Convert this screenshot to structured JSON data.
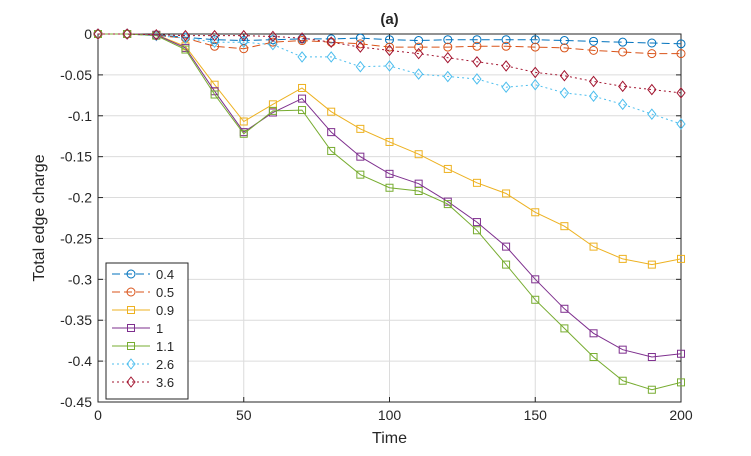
{
  "chart_data": {
    "type": "line",
    "title": "(a)",
    "xlabel": "Time",
    "ylabel": "Total edge charge",
    "xlim": [
      0,
      200
    ],
    "ylim": [
      -0.45,
      0
    ],
    "grid": true,
    "legend_position": "bottom-left",
    "xticks": [
      0,
      50,
      100,
      150,
      200
    ],
    "xtick_labels": [
      "0",
      "50",
      "100",
      "150",
      "200"
    ],
    "yticks": [
      0,
      -0.05,
      -0.1,
      -0.15,
      -0.2,
      -0.25,
      -0.3,
      -0.35,
      -0.4,
      -0.45
    ],
    "ytick_labels": [
      "0",
      "-0.05",
      "-0.1",
      "-0.15",
      "-0.2",
      "-0.25",
      "-0.3",
      "-0.35",
      "-0.4",
      "-0.45"
    ],
    "x": [
      0,
      10,
      20,
      30,
      40,
      50,
      60,
      70,
      80,
      90,
      100,
      110,
      120,
      130,
      140,
      150,
      160,
      170,
      180,
      190,
      200
    ],
    "series": [
      {
        "name": "0.4",
        "color": "#0072BD",
        "marker": "circle",
        "line": "dashed",
        "values": [
          0,
          0,
          -0.001,
          -0.004,
          -0.007,
          -0.008,
          -0.007,
          -0.006,
          -0.006,
          -0.005,
          -0.007,
          -0.008,
          -0.007,
          -0.007,
          -0.007,
          -0.007,
          -0.008,
          -0.009,
          -0.01,
          -0.011,
          -0.012
        ]
      },
      {
        "name": "0.5",
        "color": "#D95319",
        "marker": "circle",
        "line": "dashed",
        "values": [
          0,
          0,
          -0.002,
          -0.005,
          -0.015,
          -0.018,
          -0.01,
          -0.008,
          -0.01,
          -0.012,
          -0.016,
          -0.016,
          -0.016,
          -0.015,
          -0.015,
          -0.016,
          -0.017,
          -0.02,
          -0.022,
          -0.024,
          -0.024
        ]
      },
      {
        "name": "0.9",
        "color": "#EDB120",
        "marker": "square",
        "line": "solid",
        "values": [
          0,
          0,
          -0.001,
          -0.015,
          -0.062,
          -0.107,
          -0.086,
          -0.066,
          -0.095,
          -0.116,
          -0.132,
          -0.147,
          -0.165,
          -0.182,
          -0.195,
          -0.218,
          -0.235,
          -0.26,
          -0.275,
          -0.282,
          -0.275
        ]
      },
      {
        "name": "1",
        "color": "#7E2F8E",
        "marker": "square",
        "line": "solid",
        "values": [
          0,
          0,
          -0.001,
          -0.017,
          -0.07,
          -0.12,
          -0.096,
          -0.079,
          -0.12,
          -0.15,
          -0.171,
          -0.183,
          -0.205,
          -0.23,
          -0.26,
          -0.3,
          -0.336,
          -0.366,
          -0.386,
          -0.395,
          -0.391
        ]
      },
      {
        "name": "1.1",
        "color": "#77AC30",
        "marker": "square",
        "line": "solid",
        "values": [
          0,
          0,
          -0.002,
          -0.019,
          -0.074,
          -0.122,
          -0.094,
          -0.093,
          -0.143,
          -0.172,
          -0.188,
          -0.192,
          -0.208,
          -0.24,
          -0.282,
          -0.325,
          -0.36,
          -0.395,
          -0.424,
          -0.435,
          -0.426
        ]
      },
      {
        "name": "2.6",
        "color": "#4DBEEE",
        "marker": "diamond",
        "line": "dotted",
        "values": [
          0,
          0,
          -0.002,
          -0.005,
          -0.01,
          -0.01,
          -0.013,
          -0.028,
          -0.028,
          -0.04,
          -0.039,
          -0.049,
          -0.052,
          -0.055,
          -0.065,
          -0.062,
          -0.072,
          -0.076,
          -0.086,
          -0.098,
          -0.11
        ]
      },
      {
        "name": "3.6",
        "color": "#A2142F",
        "marker": "diamond",
        "line": "dotted",
        "values": [
          0,
          0,
          -0.001,
          -0.002,
          -0.002,
          -0.002,
          -0.003,
          -0.005,
          -0.01,
          -0.016,
          -0.02,
          -0.024,
          -0.029,
          -0.034,
          -0.039,
          -0.047,
          -0.051,
          -0.058,
          -0.064,
          -0.068,
          -0.072
        ]
      }
    ]
  }
}
